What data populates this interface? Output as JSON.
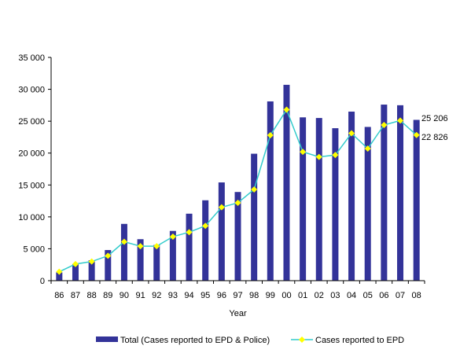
{
  "chart_data": {
    "type": "bar",
    "xlabel": "Year",
    "ylabel": "",
    "ylim": [
      0,
      35000
    ],
    "y_ticks": [
      0,
      5000,
      10000,
      15000,
      20000,
      25000,
      30000,
      35000
    ],
    "y_tick_labels": [
      "0",
      "5 000",
      "10 000",
      "15 000",
      "20 000",
      "25 000",
      "30 000",
      "35 000"
    ],
    "grid": false,
    "legend_position": "bottom",
    "categories": [
      "86",
      "87",
      "88",
      "89",
      "90",
      "91",
      "92",
      "93",
      "94",
      "95",
      "96",
      "97",
      "98",
      "99",
      "00",
      "01",
      "02",
      "03",
      "04",
      "05",
      "06",
      "07",
      "08"
    ],
    "series": [
      {
        "name": "Total (Cases reported to EPD & Police)",
        "type": "bar",
        "color": "#333399",
        "values": [
          1300,
          2600,
          3200,
          4800,
          8900,
          6500,
          5600,
          7800,
          10500,
          12600,
          15400,
          13900,
          19900,
          28100,
          30700,
          25600,
          25500,
          23900,
          26500,
          24100,
          27600,
          27500,
          25206
        ]
      },
      {
        "name": "Cases reported to EPD",
        "type": "line",
        "color": "#33CCCC",
        "marker_color": "#FFFF00",
        "values": [
          1400,
          2600,
          3000,
          3900,
          6100,
          5400,
          5400,
          6900,
          7600,
          8600,
          11500,
          12200,
          14300,
          22800,
          26800,
          20200,
          19400,
          19700,
          23100,
          20700,
          24400,
          25100,
          22826
        ]
      }
    ],
    "annotations": [
      {
        "text": "25 206",
        "series": 0,
        "index": 22
      },
      {
        "text": "22 826",
        "series": 1,
        "index": 22
      }
    ]
  }
}
